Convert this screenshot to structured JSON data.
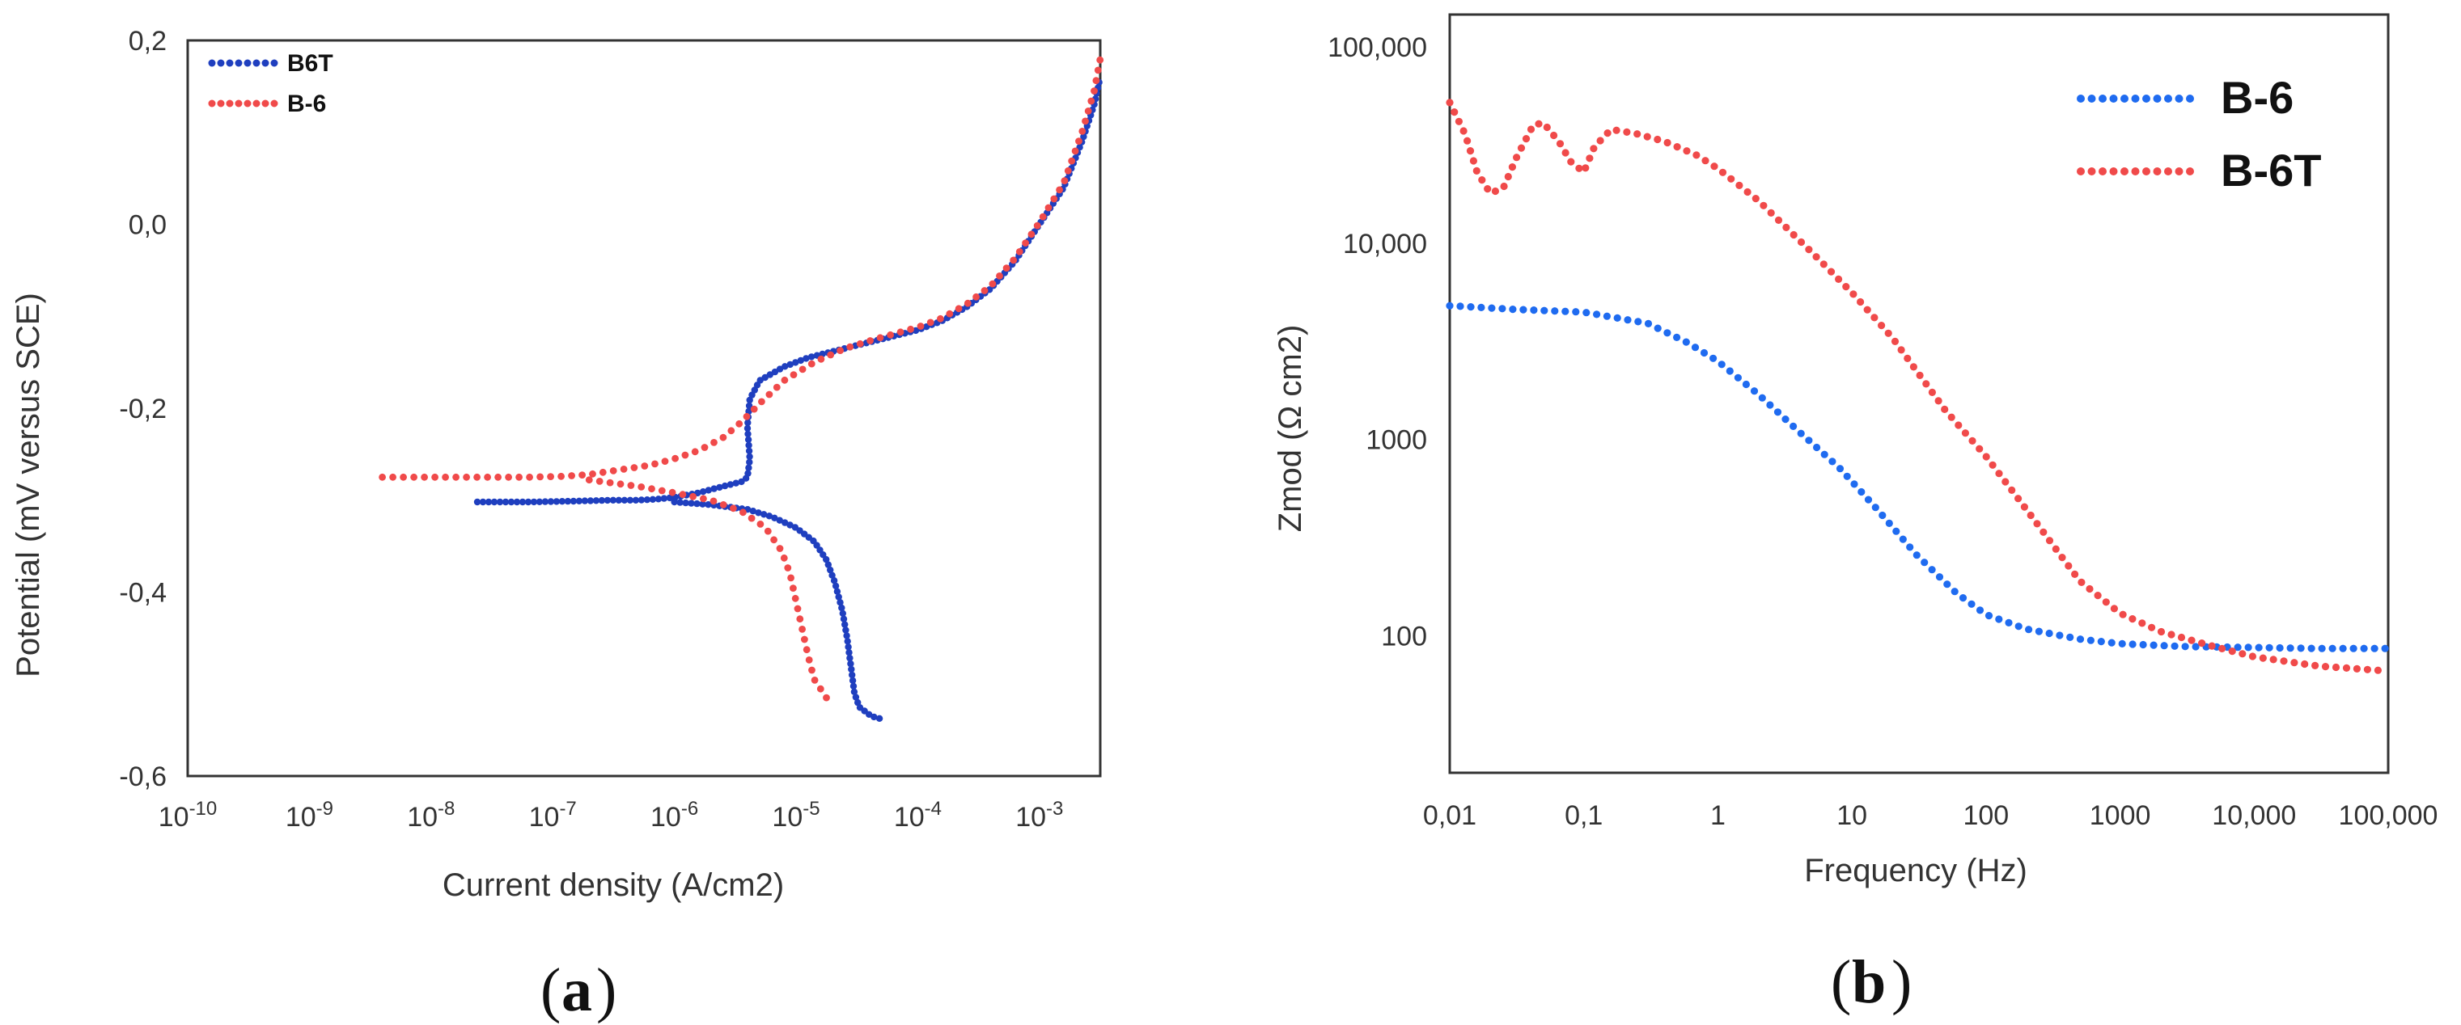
{
  "chart_data": [
    {
      "type": "line",
      "panel": "(a)",
      "caption_letter": "a",
      "title": "",
      "xlabel": "Current  density (A/cm2)",
      "ylabel": "Potential (mV versus SCE)",
      "xscale": "log",
      "xlim_exp": [
        -10,
        -2.5
      ],
      "ylim": [
        -0.6,
        0.2
      ],
      "x_ticks": [
        {
          "base": "10",
          "exp": "-10",
          "value_exp": -10
        },
        {
          "base": "10",
          "exp": "-9",
          "value_exp": -9
        },
        {
          "base": "10",
          "exp": "-8",
          "value_exp": -8
        },
        {
          "base": "10",
          "exp": "-7",
          "value_exp": -7
        },
        {
          "base": "10",
          "exp": "-6",
          "value_exp": -6
        },
        {
          "base": "10",
          "exp": "-5",
          "value_exp": -5
        },
        {
          "base": "10",
          "exp": "-4",
          "value_exp": -4
        },
        {
          "base": "10",
          "exp": "-3",
          "value_exp": -3
        }
      ],
      "y_ticks": [
        {
          "label": "0,2",
          "value": 0.2
        },
        {
          "label": "0,0",
          "value": 0.0
        },
        {
          "label": "-0,2",
          "value": -0.2
        },
        {
          "label": "-0,4",
          "value": -0.4
        },
        {
          "label": "-0,6",
          "value": -0.6
        }
      ],
      "legend_position": "top-left",
      "series": [
        {
          "name": "B6T",
          "color": "#1f3fbf",
          "style": "dotted-dense",
          "points": [
            [
              -7.62,
              -0.302
            ],
            [
              -7.2,
              -0.302
            ],
            [
              -6.8,
              -0.301
            ],
            [
              -6.5,
              -0.3
            ],
            [
              -6.3,
              -0.3
            ],
            [
              -6.15,
              -0.299
            ],
            [
              -6.0,
              -0.297
            ],
            [
              -5.8,
              -0.292
            ],
            [
              -5.6,
              -0.285
            ],
            [
              -5.45,
              -0.28
            ],
            [
              -5.4,
              -0.275
            ],
            [
              -5.38,
              -0.255
            ],
            [
              -5.4,
              -0.22
            ],
            [
              -5.38,
              -0.19
            ],
            [
              -5.3,
              -0.17
            ],
            [
              -5.1,
              -0.155
            ],
            [
              -4.9,
              -0.145
            ],
            [
              -4.6,
              -0.135
            ],
            [
              -4.3,
              -0.125
            ],
            [
              -4.0,
              -0.115
            ],
            [
              -3.8,
              -0.105
            ],
            [
              -3.6,
              -0.09
            ],
            [
              -3.4,
              -0.07
            ],
            [
              -3.2,
              -0.04
            ],
            [
              -3.0,
              0.0
            ],
            [
              -2.8,
              0.04
            ],
            [
              -2.65,
              0.09
            ],
            [
              -2.55,
              0.13
            ],
            [
              -2.5,
              0.16
            ],
            [
              -6.0,
              -0.302
            ],
            [
              -5.7,
              -0.305
            ],
            [
              -5.4,
              -0.31
            ],
            [
              -5.2,
              -0.318
            ],
            [
              -5.0,
              -0.33
            ],
            [
              -4.85,
              -0.345
            ],
            [
              -4.75,
              -0.365
            ],
            [
              -4.68,
              -0.39
            ],
            [
              -4.62,
              -0.42
            ],
            [
              -4.58,
              -0.45
            ],
            [
              -4.55,
              -0.48
            ],
            [
              -4.52,
              -0.51
            ],
            [
              -4.48,
              -0.525
            ],
            [
              -4.38,
              -0.535
            ],
            [
              -4.3,
              -0.538
            ]
          ]
        },
        {
          "name": "B-6",
          "color": "#f04a4a",
          "style": "dotted",
          "points": [
            [
              -8.4,
              -0.275
            ],
            [
              -8.0,
              -0.275
            ],
            [
              -7.6,
              -0.275
            ],
            [
              -7.2,
              -0.275
            ],
            [
              -6.9,
              -0.274
            ],
            [
              -6.7,
              -0.272
            ],
            [
              -6.5,
              -0.268
            ],
            [
              -6.2,
              -0.262
            ],
            [
              -6.0,
              -0.255
            ],
            [
              -5.8,
              -0.246
            ],
            [
              -5.6,
              -0.232
            ],
            [
              -5.45,
              -0.215
            ],
            [
              -5.3,
              -0.195
            ],
            [
              -5.1,
              -0.17
            ],
            [
              -4.85,
              -0.15
            ],
            [
              -4.6,
              -0.135
            ],
            [
              -4.3,
              -0.123
            ],
            [
              -4.0,
              -0.112
            ],
            [
              -3.8,
              -0.102
            ],
            [
              -3.6,
              -0.087
            ],
            [
              -3.4,
              -0.067
            ],
            [
              -3.2,
              -0.037
            ],
            [
              -3.0,
              0.002
            ],
            [
              -2.8,
              0.045
            ],
            [
              -2.65,
              0.1
            ],
            [
              -2.55,
              0.145
            ],
            [
              -2.5,
              0.18
            ],
            [
              -6.7,
              -0.278
            ],
            [
              -6.3,
              -0.285
            ],
            [
              -6.0,
              -0.292
            ],
            [
              -5.7,
              -0.3
            ],
            [
              -5.45,
              -0.312
            ],
            [
              -5.25,
              -0.33
            ],
            [
              -5.12,
              -0.355
            ],
            [
              -5.05,
              -0.38
            ],
            [
              -5.0,
              -0.41
            ],
            [
              -4.95,
              -0.44
            ],
            [
              -4.9,
              -0.47
            ],
            [
              -4.85,
              -0.495
            ],
            [
              -4.75,
              -0.515
            ]
          ]
        }
      ]
    },
    {
      "type": "line",
      "panel": "(b)",
      "caption_letter": "b",
      "title": "",
      "xlabel": "Frequency (Hz)",
      "ylabel": "Zmod (Ω cm2)",
      "xscale": "log",
      "yscale": "log",
      "xlim": [
        0.01,
        100000
      ],
      "ylim": [
        20,
        100000
      ],
      "x_ticks": [
        {
          "label": "0,01",
          "value": 0.01
        },
        {
          "label": "0,1",
          "value": 0.1
        },
        {
          "label": "1",
          "value": 1
        },
        {
          "label": "10",
          "value": 10
        },
        {
          "label": "100",
          "value": 100
        },
        {
          "label": "1000",
          "value": 1000
        },
        {
          "label": "10,000",
          "value": 10000
        },
        {
          "label": "100,000",
          "value": 100000
        }
      ],
      "y_ticks": [
        {
          "label": "100,000",
          "value": 100000
        },
        {
          "label": "10,000",
          "value": 10000
        },
        {
          "label": "1000",
          "value": 1000
        },
        {
          "label": "100",
          "value": 100
        }
      ],
      "legend_position": "top-right",
      "series": [
        {
          "name": "B-6",
          "color": "#1f6bf0",
          "style": "dotted",
          "points": [
            [
              0.01,
              4800
            ],
            [
              0.03,
              4600
            ],
            [
              0.1,
              4450
            ],
            [
              0.3,
              3900
            ],
            [
              0.6,
              3100
            ],
            [
              1,
              2500
            ],
            [
              2,
              1700
            ],
            [
              4,
              1100
            ],
            [
              8,
              720
            ],
            [
              15,
              450
            ],
            [
              30,
              260
            ],
            [
              60,
              165
            ],
            [
              100,
              128
            ],
            [
              200,
              108
            ],
            [
              500,
              96
            ],
            [
              1000,
              91
            ],
            [
              3000,
              88
            ],
            [
              10000,
              87
            ],
            [
              30000,
              86
            ],
            [
              100000,
              86
            ]
          ]
        },
        {
          "name": "B-6T",
          "color": "#f04a4a",
          "style": "dotted",
          "points": [
            [
              0.01,
              52000
            ],
            [
              0.013,
              36000
            ],
            [
              0.016,
              23000
            ],
            [
              0.02,
              18000
            ],
            [
              0.025,
              19000
            ],
            [
              0.032,
              28000
            ],
            [
              0.042,
              40000
            ],
            [
              0.05,
              41000
            ],
            [
              0.065,
              33000
            ],
            [
              0.08,
              26000
            ],
            [
              0.1,
              23000
            ],
            [
              0.12,
              31000
            ],
            [
              0.16,
              38000
            ],
            [
              0.25,
              36000
            ],
            [
              0.4,
              33000
            ],
            [
              0.7,
              28000
            ],
            [
              1,
              24000
            ],
            [
              2,
              16500
            ],
            [
              5,
              9000
            ],
            [
              10,
              5600
            ],
            [
              20,
              3300
            ],
            [
              50,
              1400
            ],
            [
              100,
              820
            ],
            [
              200,
              440
            ],
            [
              500,
              190
            ],
            [
              1000,
              130
            ],
            [
              2000,
              105
            ],
            [
              5000,
              88
            ],
            [
              10000,
              78
            ],
            [
              30000,
              70
            ],
            [
              100000,
              66
            ]
          ]
        }
      ]
    }
  ]
}
